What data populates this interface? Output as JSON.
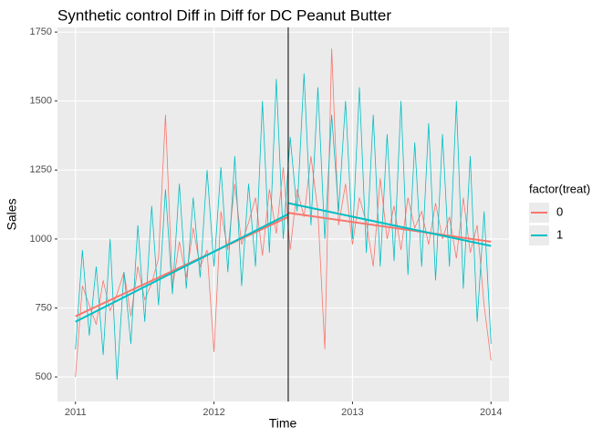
{
  "chart_data": {
    "type": "line",
    "title": "Synthetic control Diff in Diff for DC Peanut Butter",
    "x_label": "Time",
    "y_label": "Sales",
    "legend_title": "factor(treat)",
    "legend_position": "right",
    "grid": true,
    "xlim": [
      2010.87,
      2014.13
    ],
    "ylim": [
      411,
      1767
    ],
    "xticks": [
      2011,
      2012,
      2013,
      2014
    ],
    "yticks": [
      500,
      750,
      1000,
      1250,
      1500,
      1750
    ],
    "vline": 2012.536,
    "x": [
      2011,
      2011.05,
      2011.1,
      2011.15,
      2011.2,
      2011.25,
      2011.3,
      2011.35,
      2011.4,
      2011.45,
      2011.5,
      2011.55,
      2011.6,
      2011.65,
      2011.7,
      2011.75,
      2011.8,
      2011.85,
      2011.9,
      2011.95,
      2012,
      2012.05,
      2012.1,
      2012.15,
      2012.2,
      2012.25,
      2012.3,
      2012.35,
      2012.4,
      2012.45,
      2012.5,
      2012.55,
      2012.6,
      2012.65,
      2012.7,
      2012.75,
      2012.8,
      2012.85,
      2012.9,
      2012.95,
      2013,
      2013.05,
      2013.1,
      2013.15,
      2013.2,
      2013.25,
      2013.3,
      2013.35,
      2013.4,
      2013.45,
      2013.5,
      2013.55,
      2013.6,
      2013.65,
      2013.7,
      2013.75,
      2013.8,
      2013.85,
      2013.9,
      2013.95,
      2014
    ],
    "series": [
      {
        "name": "0",
        "color": "#F8766D",
        "values": [
          500,
          830,
          760,
          690,
          850,
          740,
          800,
          880,
          720,
          900,
          780,
          840,
          930,
          1450,
          820,
          990,
          860,
          1040,
          900,
          960,
          590,
          1100,
          960,
          1200,
          980,
          1060,
          1150,
          940,
          1180,
          1020,
          1260,
          960,
          1180,
          1080,
          1300,
          1100,
          600,
          1690,
          1050,
          1200,
          980,
          1150,
          1060,
          900,
          1220,
          1000,
          1120,
          960,
          1150,
          1040,
          1100,
          980,
          1130,
          1000,
          1080,
          930,
          1150,
          950,
          1050,
          760,
          560
        ],
        "trend": [
          {
            "x": [
              2011,
              2012.536
            ],
            "values": [
              720,
              1080
            ]
          },
          {
            "x": [
              2012.536,
              2014
            ],
            "values": [
              1095,
              990
            ]
          }
        ]
      },
      {
        "name": "1",
        "color": "#00BFC4",
        "values": [
          600,
          960,
          650,
          900,
          580,
          1000,
          490,
          880,
          620,
          1050,
          700,
          1120,
          760,
          1180,
          800,
          1200,
          820,
          1150,
          860,
          1250,
          900,
          1260,
          880,
          1300,
          830,
          1200,
          900,
          1500,
          950,
          1580,
          1000,
          1370,
          1100,
          1600,
          1050,
          1550,
          1000,
          1450,
          1100,
          1500,
          1000,
          1550,
          950,
          1450,
          900,
          1380,
          920,
          1500,
          870,
          1350,
          900,
          1420,
          850,
          1380,
          900,
          1500,
          820,
          1300,
          700,
          1100,
          620
        ],
        "trend": [
          {
            "x": [
              2011,
              2012.536
            ],
            "values": [
              700,
              1090
            ]
          },
          {
            "x": [
              2012.536,
              2014
            ],
            "values": [
              1130,
              975
            ]
          }
        ]
      }
    ]
  }
}
